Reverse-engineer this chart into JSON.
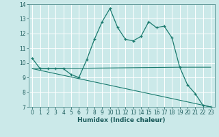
{
  "title": "",
  "xlabel": "Humidex (Indice chaleur)",
  "bg_color": "#cbe9e9",
  "grid_color": "#ffffff",
  "line_color": "#1a7a6e",
  "xlim": [
    -0.5,
    23.5
  ],
  "ylim": [
    7,
    14
  ],
  "yticks": [
    7,
    8,
    9,
    10,
    11,
    12,
    13,
    14
  ],
  "xticks": [
    0,
    1,
    2,
    3,
    4,
    5,
    6,
    7,
    8,
    9,
    10,
    11,
    12,
    13,
    14,
    15,
    16,
    17,
    18,
    19,
    20,
    21,
    22,
    23
  ],
  "line1_x": [
    0,
    1,
    2,
    3,
    4,
    5,
    6,
    7,
    8,
    9,
    10,
    11,
    12,
    13,
    14,
    15,
    16,
    17,
    18,
    19,
    20,
    21,
    22,
    23
  ],
  "line1_y": [
    10.3,
    9.6,
    9.6,
    9.6,
    9.6,
    9.2,
    9.0,
    10.2,
    11.6,
    12.8,
    13.7,
    12.4,
    11.6,
    11.5,
    11.8,
    12.8,
    12.4,
    12.5,
    11.7,
    9.7,
    8.5,
    7.9,
    7.1,
    7.0
  ],
  "line2_x": [
    0,
    1,
    19,
    23
  ],
  "line2_y": [
    9.6,
    9.6,
    9.7,
    9.7
  ],
  "line3_x": [
    0,
    23
  ],
  "line3_y": [
    9.6,
    7.0
  ],
  "tick_fontsize": 5.5,
  "xlabel_fontsize": 6.5
}
